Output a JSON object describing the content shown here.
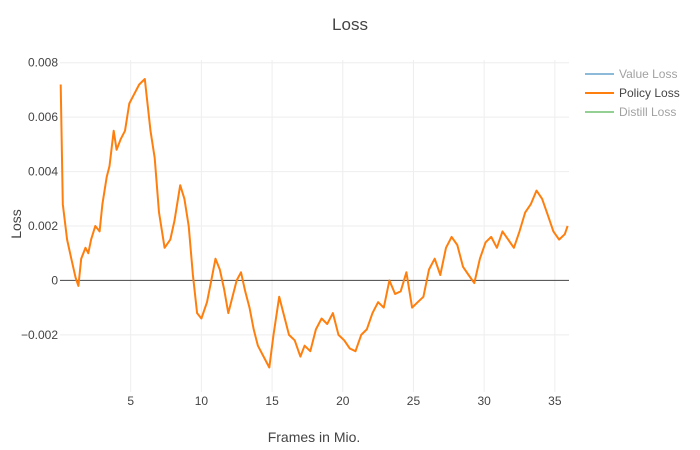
{
  "chart_data": {
    "type": "line",
    "title": "Loss",
    "xlabel": "Frames in Mio.",
    "ylabel": "Loss",
    "xlim": [
      0,
      36
    ],
    "ylim": [
      -0.0041,
      0.0081
    ],
    "x_ticks": [
      5,
      10,
      15,
      20,
      25,
      30,
      35
    ],
    "y_ticks": [
      {
        "value": -0.002,
        "label": "−0.002"
      },
      {
        "value": 0,
        "label": "0"
      },
      {
        "value": 0.002,
        "label": "0.002"
      },
      {
        "value": 0.004,
        "label": "0.004"
      },
      {
        "value": 0.006,
        "label": "0.006"
      },
      {
        "value": 0.008,
        "label": "0.008"
      }
    ],
    "grid": true,
    "legend_position": "top-right",
    "series": [
      {
        "name": "Value Loss",
        "color": "#1f77b4",
        "visible": false,
        "x": [],
        "y": []
      },
      {
        "name": "Policy Loss",
        "color": "#ff7f0e",
        "visible": true,
        "x": [
          0.05,
          0.2,
          0.5,
          0.8,
          1.1,
          1.3,
          1.5,
          1.8,
          2.0,
          2.2,
          2.5,
          2.8,
          3.0,
          3.3,
          3.5,
          3.8,
          4.0,
          4.3,
          4.6,
          4.9,
          5.2,
          5.6,
          6.0,
          6.4,
          6.7,
          7.0,
          7.4,
          7.8,
          8.1,
          8.5,
          8.8,
          9.1,
          9.4,
          9.7,
          10.0,
          10.4,
          10.7,
          11.0,
          11.3,
          11.6,
          11.9,
          12.2,
          12.5,
          12.8,
          13.1,
          13.4,
          13.7,
          14.0,
          14.4,
          14.8,
          15.1,
          15.5,
          15.8,
          16.2,
          16.6,
          17.0,
          17.3,
          17.7,
          18.1,
          18.5,
          18.9,
          19.3,
          19.7,
          20.1,
          20.5,
          20.9,
          21.3,
          21.7,
          22.1,
          22.5,
          22.9,
          23.3,
          23.7,
          24.1,
          24.5,
          24.9,
          25.3,
          25.7,
          26.1,
          26.5,
          26.9,
          27.3,
          27.7,
          28.1,
          28.5,
          28.9,
          29.3,
          29.7,
          30.1,
          30.5,
          30.9,
          31.3,
          31.7,
          32.1,
          32.5,
          32.9,
          33.3,
          33.7,
          34.1,
          34.5,
          34.9,
          35.3,
          35.7,
          35.9
        ],
        "y": [
          0.0072,
          0.0028,
          0.0015,
          0.0008,
          0.0001,
          -0.0002,
          0.0008,
          0.0012,
          0.001,
          0.0015,
          0.002,
          0.0018,
          0.0028,
          0.0038,
          0.0042,
          0.0055,
          0.0048,
          0.0052,
          0.0055,
          0.0065,
          0.0068,
          0.0072,
          0.0074,
          0.0055,
          0.0045,
          0.0025,
          0.0012,
          0.0015,
          0.0022,
          0.0035,
          0.003,
          0.002,
          0.0002,
          -0.0012,
          -0.0014,
          -0.0008,
          0.0,
          0.0008,
          0.0004,
          -0.0003,
          -0.0012,
          -0.0006,
          0.0,
          0.0003,
          -0.0004,
          -0.001,
          -0.0018,
          -0.0024,
          -0.0028,
          -0.0032,
          -0.002,
          -0.0006,
          -0.0012,
          -0.002,
          -0.0022,
          -0.0028,
          -0.0024,
          -0.0026,
          -0.0018,
          -0.0014,
          -0.0016,
          -0.0012,
          -0.002,
          -0.0022,
          -0.0025,
          -0.0026,
          -0.002,
          -0.0018,
          -0.0012,
          -0.0008,
          -0.001,
          0.0,
          -0.0005,
          -0.0004,
          0.0003,
          -0.001,
          -0.0008,
          -0.0006,
          0.0004,
          0.0008,
          0.0002,
          0.0012,
          0.0016,
          0.0013,
          0.0005,
          0.0002,
          -0.0001,
          0.0008,
          0.0014,
          0.0016,
          0.0012,
          0.0018,
          0.0015,
          0.0012,
          0.0018,
          0.0025,
          0.0028,
          0.0033,
          0.003,
          0.0024,
          0.0018,
          0.0015,
          0.0017,
          0.002
        ]
      },
      {
        "name": "Distill Loss",
        "color": "#2ca02c",
        "visible": false,
        "x": [],
        "y": []
      }
    ]
  }
}
